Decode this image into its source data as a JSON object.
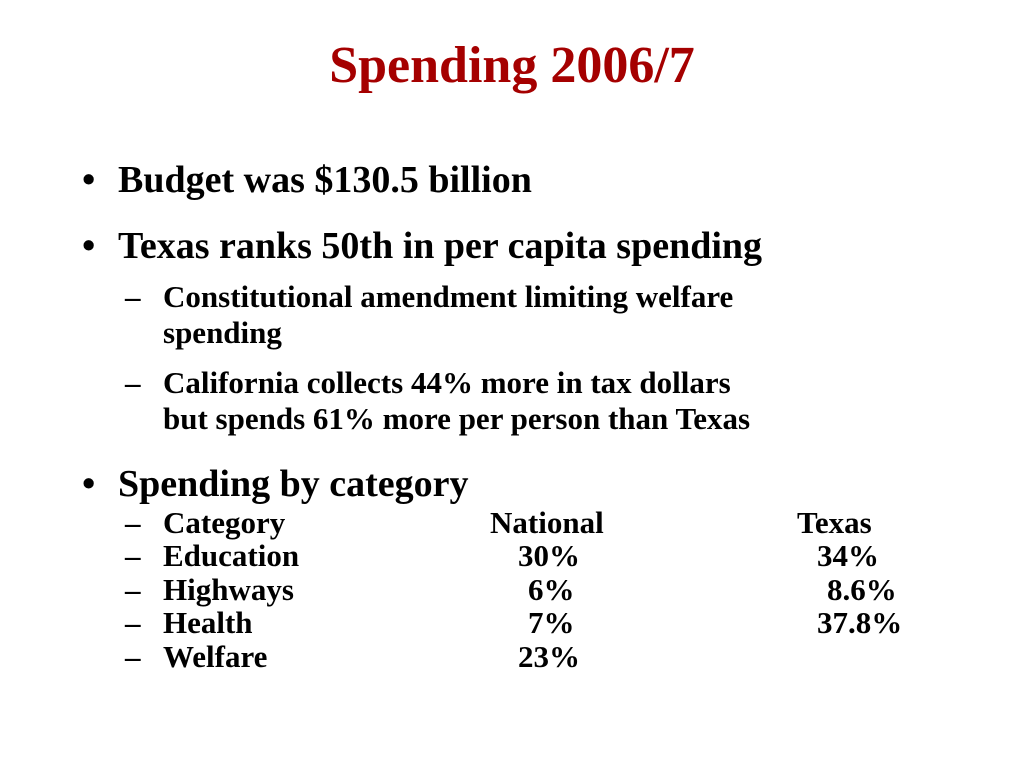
{
  "slide": {
    "title": "Spending 2006/7",
    "bullets": [
      {
        "marker": "•",
        "text": "Budget was $130.5 billion"
      },
      {
        "marker": "•",
        "text": "Texas ranks 50th in per capita spending"
      },
      {
        "marker": "•",
        "text": "Spending by category"
      }
    ],
    "sub_bullets": [
      {
        "marker": "–",
        "line1": "Constitutional amendment limiting welfare",
        "line2": "spending"
      },
      {
        "marker": "–",
        "line1": "California collects 44% more in tax dollars",
        "line2": "but spends 61% more per person than Texas"
      }
    ],
    "category_table": {
      "header": {
        "marker": "–",
        "category": "Category",
        "national": "National",
        "texas": "Texas"
      },
      "rows": [
        {
          "marker": "–",
          "category": "Education",
          "national": "30%",
          "texas": "34%"
        },
        {
          "marker": "–",
          "category": "Highways",
          "national": "6%",
          "texas": "8.6%"
        },
        {
          "marker": "–",
          "category": "Health",
          "national": "7%",
          "texas": "37.8%"
        },
        {
          "marker": "–",
          "category": "Welfare",
          "national": "23%",
          "texas": ""
        }
      ]
    }
  },
  "colors": {
    "title": "#A50000",
    "body_text": "#000000",
    "background": "#FFFFFF"
  }
}
